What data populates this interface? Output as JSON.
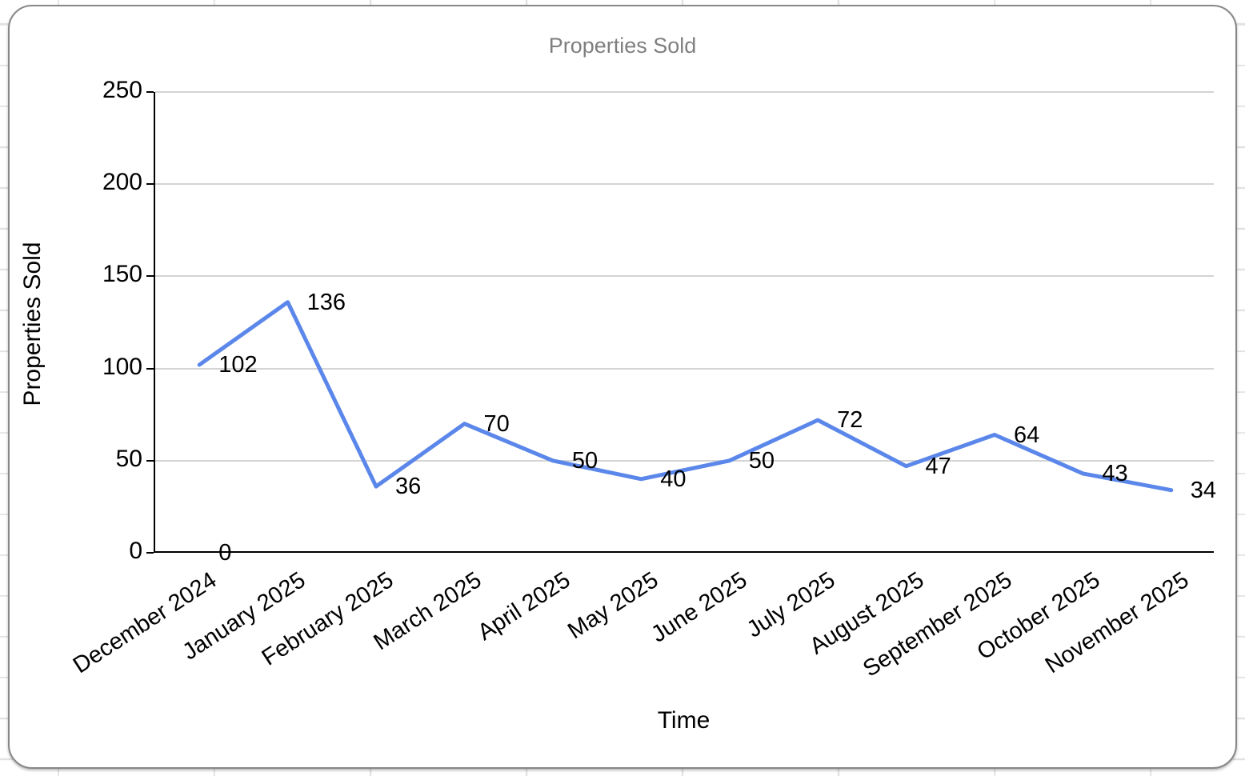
{
  "chart_data": {
    "type": "line",
    "title": "Properties Sold",
    "xlabel": "Time",
    "ylabel": "Properties Sold",
    "categories": [
      "December 2024",
      "January 2025",
      "February 2025",
      "March 2025",
      "April 2025",
      "May 2025",
      "June 2025",
      "July 2025",
      "August 2025",
      "September 2025",
      "October 2025",
      "November 2025"
    ],
    "series": [
      {
        "name": "Properties Sold",
        "values": [
          102,
          136,
          36,
          70,
          50,
          40,
          50,
          72,
          47,
          64,
          43,
          34
        ]
      }
    ],
    "data_labels": [
      102,
      136,
      36,
      70,
      50,
      40,
      50,
      72,
      47,
      64,
      43,
      34
    ],
    "annotations": [
      {
        "label": "0",
        "category": "December 2024",
        "value": 0
      }
    ],
    "ylim": [
      0,
      250
    ],
    "yticks": [
      0,
      50,
      100,
      150,
      200,
      250
    ],
    "grid": "horizontal",
    "legend_position": "none",
    "x_label_rotation_deg": -33
  },
  "colors": {
    "line": "#5b87ea",
    "gridline": "#d4d4d4",
    "axis": "#000000",
    "title_text": "#7f7f7f",
    "label_text": "#000000",
    "card_border": "#878787",
    "sheet_gridline": "#e2e2e2"
  }
}
